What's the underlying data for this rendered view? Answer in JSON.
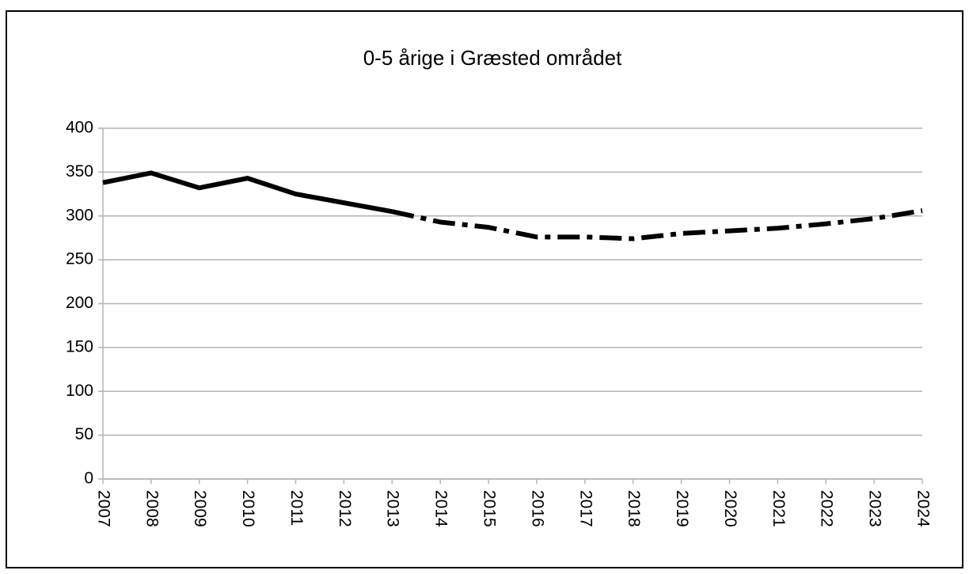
{
  "chart_data": {
    "type": "line",
    "title": "0-5 årige i Græsted området",
    "categories": [
      "2007",
      "2008",
      "2009",
      "2010",
      "2011",
      "2012",
      "2013",
      "2014",
      "2015",
      "2016",
      "2017",
      "2018",
      "2019",
      "2020",
      "2021",
      "2022",
      "2023",
      "2024"
    ],
    "series": [
      {
        "color": "#000000",
        "line_style": "solid",
        "values": [
          338,
          349,
          332,
          343,
          325,
          315,
          305,
          null,
          null,
          null,
          null,
          null,
          null,
          null,
          null,
          null,
          null,
          null
        ]
      },
      {
        "color": "#000000",
        "line_style": "dashdot",
        "values": [
          null,
          null,
          null,
          null,
          null,
          null,
          305,
          293,
          287,
          276,
          276,
          274,
          280,
          283,
          286,
          291,
          297,
          306
        ]
      }
    ],
    "ylim": [
      0,
      400
    ],
    "yticks": [
      0,
      50,
      100,
      150,
      200,
      250,
      300,
      350,
      400
    ],
    "grid": true
  }
}
